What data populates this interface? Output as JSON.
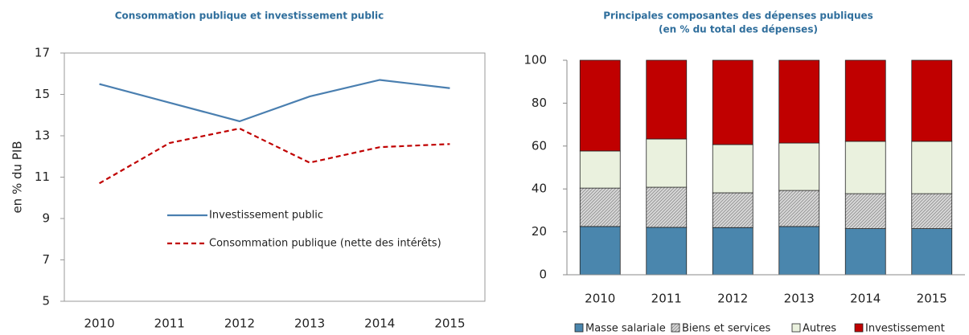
{
  "chart_data": [
    {
      "type": "line",
      "title": "Consommation publique  et  investissement public",
      "ylabel": "en % du PIB",
      "categories": [
        "2010",
        "2011",
        "2012",
        "2013",
        "2014",
        "2015"
      ],
      "series": [
        {
          "name": "Investissement public",
          "color": "#4a7fb0",
          "dash": false,
          "values": [
            15.5,
            14.6,
            13.7,
            14.9,
            15.7,
            15.3
          ]
        },
        {
          "name": "Consommation publique (nette des intérêts)",
          "color": "#c00000",
          "dash": true,
          "values": [
            10.7,
            12.65,
            13.35,
            11.7,
            12.45,
            12.6
          ]
        }
      ],
      "ylim": [
        5,
        17
      ],
      "yticks": [
        5,
        7,
        9,
        11,
        13,
        15,
        17
      ]
    },
    {
      "type": "stacked_bar",
      "title": [
        "Principales composantes des dépenses publiques",
        "(en % du total des dépenses)"
      ],
      "categories": [
        "2010",
        "2011",
        "2012",
        "2013",
        "2014",
        "2015"
      ],
      "series": [
        {
          "name": "Masse salariale",
          "color": "#4a86ad",
          "values": [
            22.5,
            22.1,
            22,
            22.5,
            21.5,
            21.5
          ]
        },
        {
          "name": "Biens et services",
          "color": "hatch",
          "values": [
            17.9,
            18.7,
            16.2,
            16.8,
            16.3,
            16.3
          ]
        },
        {
          "name": "Autres",
          "color": "#eaf1de",
          "values": [
            17.3,
            22.5,
            22.5,
            22.1,
            24.4,
            24.4
          ]
        },
        {
          "name": "Investissement",
          "color": "#c00000",
          "values": [
            42.3,
            36.7,
            39.3,
            38.6,
            37.8,
            37.8
          ]
        }
      ],
      "ylim": [
        0,
        100
      ],
      "yticks": [
        0,
        20,
        40,
        60,
        80,
        100
      ]
    }
  ]
}
